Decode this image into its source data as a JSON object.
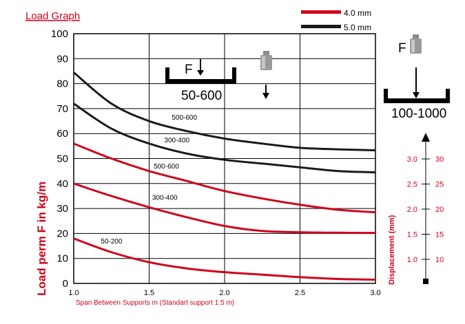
{
  "chart_data": {
    "type": "line",
    "title": "Load Graph",
    "xlabel": "Span Between Supports m (Standart support 1.5 m)",
    "ylabel": "Load perm F in kg/m",
    "xlim": [
      1.0,
      3.0
    ],
    "ylim": [
      0,
      100
    ],
    "xticks": [
      "1.0",
      "1.5",
      "2.0",
      "2.5",
      "3.0"
    ],
    "yticks": [
      "0",
      "10",
      "20",
      "30",
      "40",
      "50",
      "60",
      "70",
      "80",
      "90",
      "100"
    ],
    "grid": true,
    "legend": [
      {
        "label": "4.0 mm",
        "color": "#d0021b"
      },
      {
        "label": "5.0 mm",
        "color": "#1a1a1a"
      }
    ],
    "series": [
      {
        "group": "5.0 mm",
        "label": "500-600",
        "label_at": [
          1.65,
          65.5
        ],
        "color": "#1a1a1a",
        "x": [
          1.0,
          1.25,
          1.5,
          1.75,
          2.0,
          2.25,
          2.5,
          2.75,
          3.0
        ],
        "y": [
          84.5,
          72.0,
          65.0,
          61.0,
          58.0,
          56.0,
          54.3,
          53.7,
          53.3
        ]
      },
      {
        "group": "5.0 mm",
        "label": "300-400",
        "label_at": [
          1.6,
          56.5
        ],
        "color": "#1a1a1a",
        "x": [
          1.0,
          1.25,
          1.5,
          1.75,
          2.0,
          2.25,
          2.5,
          2.75,
          3.0
        ],
        "y": [
          72.0,
          62.0,
          56.0,
          52.0,
          49.5,
          48.0,
          46.5,
          45.0,
          44.5
        ]
      },
      {
        "group": "4.0 mm",
        "label": "500-600",
        "label_at": [
          1.53,
          46.0
        ],
        "color": "#d0021b",
        "x": [
          1.0,
          1.25,
          1.5,
          1.75,
          2.0,
          2.25,
          2.5,
          2.75,
          3.0
        ],
        "y": [
          56.0,
          50.0,
          45.0,
          41.0,
          37.0,
          34.0,
          31.5,
          29.5,
          28.5
        ]
      },
      {
        "group": "4.0 mm",
        "label": "300-400",
        "label_at": [
          1.52,
          33.5
        ],
        "color": "#d0021b",
        "x": [
          1.0,
          1.25,
          1.5,
          1.75,
          2.0,
          2.25,
          2.5,
          2.75,
          3.0
        ],
        "y": [
          40.0,
          35.0,
          30.5,
          26.5,
          23.0,
          21.0,
          20.5,
          20.3,
          20.2
        ]
      },
      {
        "group": "4.0 mm",
        "label": "50-200",
        "label_at": [
          1.18,
          16.0
        ],
        "color": "#d0021b",
        "x": [
          1.0,
          1.25,
          1.5,
          1.75,
          2.0,
          2.25,
          2.5,
          2.75,
          3.0
        ],
        "y": [
          18.0,
          12.5,
          8.5,
          6.0,
          4.5,
          3.5,
          2.5,
          1.8,
          1.5
        ]
      }
    ],
    "annotations": {
      "force_label": "F",
      "profile_small": "50-600",
      "profile_large": "100-1000"
    },
    "displacement_axis": {
      "label": "Displacement (mm)",
      "ticks": [
        {
          "left": "3.0",
          "right": "30"
        },
        {
          "left": "2.5",
          "right": "25"
        },
        {
          "left": "2.0",
          "right": "20"
        },
        {
          "left": "1.5",
          "right": "15"
        },
        {
          "left": "1.0",
          "right": "10"
        }
      ]
    }
  }
}
